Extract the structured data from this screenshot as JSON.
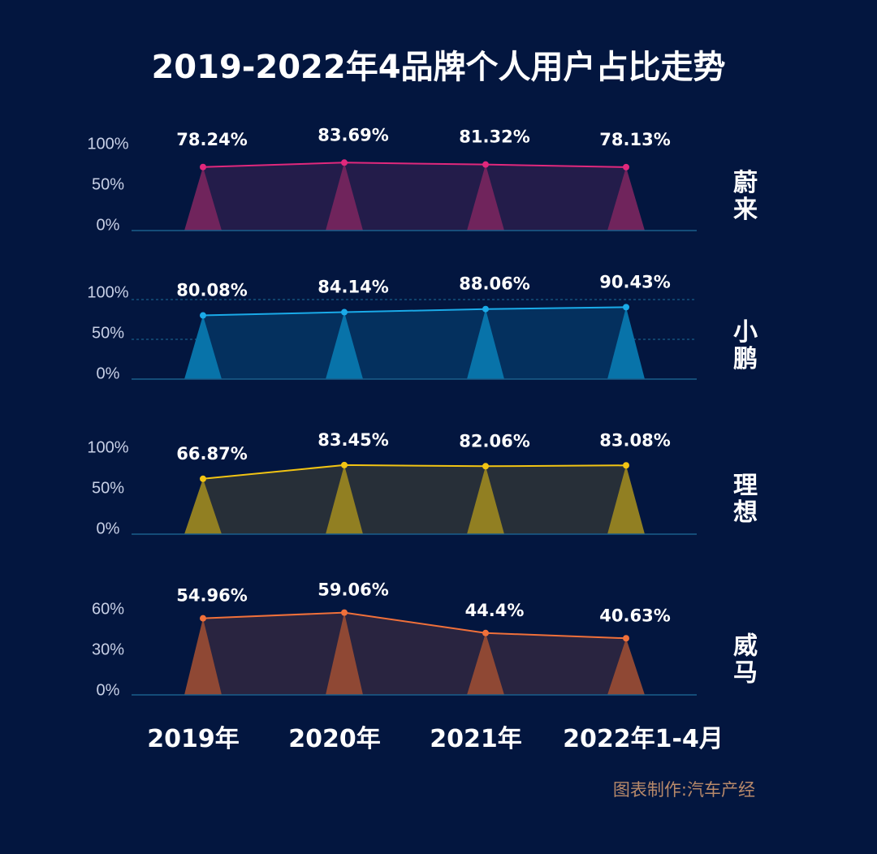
{
  "chart_data": {
    "type": "line",
    "title": "2019-2022年4品牌个人用户占比走势",
    "categories": [
      "2019年",
      "2020年",
      "2021年",
      "2022年1-4月"
    ],
    "credit": "图表制作:汽车产经",
    "panels": [
      {
        "name": "蔚来",
        "values": [
          78.24,
          83.69,
          81.32,
          78.13
        ],
        "labels": [
          "78.24%",
          "83.69%",
          "81.32%",
          "78.13%"
        ],
        "y_ticks": [
          "100%",
          "50%",
          "0%"
        ],
        "ylim": [
          0,
          100
        ],
        "color": "#e0287c",
        "fill": "#231c4a",
        "spike": "#70245c",
        "dashed_grid": false
      },
      {
        "name": "小鹏",
        "values": [
          80.08,
          84.14,
          88.06,
          90.43
        ],
        "labels": [
          "80.08%",
          "84.14%",
          "88.06%",
          "90.43%"
        ],
        "y_ticks": [
          "100%",
          "50%",
          "0%"
        ],
        "ylim": [
          0,
          100
        ],
        "color": "#1aaae8",
        "fill": "#04305e",
        "spike": "#0873a9",
        "dashed_grid": true
      },
      {
        "name": "理想",
        "values": [
          66.87,
          83.45,
          82.06,
          83.08
        ],
        "labels": [
          "66.87%",
          "83.45%",
          "82.06%",
          "83.08%"
        ],
        "y_ticks": [
          "100%",
          "50%",
          "0%"
        ],
        "ylim": [
          0,
          100
        ],
        "color": "#f2c413",
        "fill": "#272f38",
        "spike": "#917f22",
        "dashed_grid": false
      },
      {
        "name": "威马",
        "values": [
          54.96,
          59.06,
          44.4,
          40.63
        ],
        "labels": [
          "54.96%",
          "59.06%",
          "44.4%",
          "40.63%"
        ],
        "y_ticks": [
          "60%",
          "30%",
          "0%"
        ],
        "ylim": [
          0,
          60
        ],
        "color": "#f0703a",
        "fill": "#292440",
        "spike": "#8f4834",
        "dashed_grid": false
      }
    ]
  }
}
